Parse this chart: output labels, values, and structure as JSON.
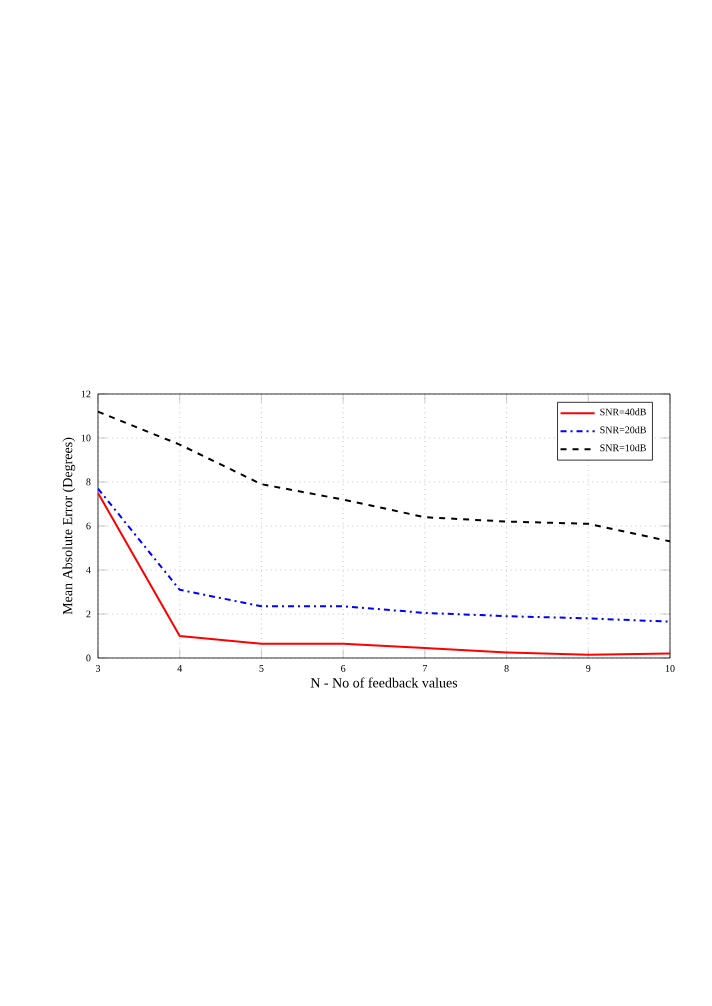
{
  "chart_data": {
    "type": "line",
    "xlabel": "N - No of feedback values",
    "ylabel": "Mean Absolute Error (Degrees)",
    "x": [
      3,
      4,
      5,
      6,
      7,
      8,
      9,
      10
    ],
    "series": [
      {
        "name": "SNR=40dB",
        "color": "#ff0000",
        "line_style": "solid",
        "values": [
          7.5,
          1.0,
          0.65,
          0.65,
          0.45,
          0.25,
          0.15,
          0.2
        ]
      },
      {
        "name": "SNR=20dB",
        "color": "#0000ff",
        "line_style": "dashdot",
        "values": [
          7.7,
          3.1,
          2.35,
          2.35,
          2.05,
          1.9,
          1.8,
          1.65
        ]
      },
      {
        "name": "SNR=10dB",
        "color": "#000000",
        "line_style": "dashed",
        "values": [
          11.2,
          9.7,
          7.9,
          7.2,
          6.4,
          6.2,
          6.1,
          5.3
        ]
      }
    ],
    "xlim": [
      3,
      10
    ],
    "ylim": [
      0,
      12
    ],
    "xticks": [
      3,
      4,
      5,
      6,
      7,
      8,
      9,
      10
    ],
    "yticks": [
      0,
      2,
      4,
      6,
      8,
      10,
      12
    ],
    "grid": true,
    "legend": "top right",
    "marker": "none"
  }
}
